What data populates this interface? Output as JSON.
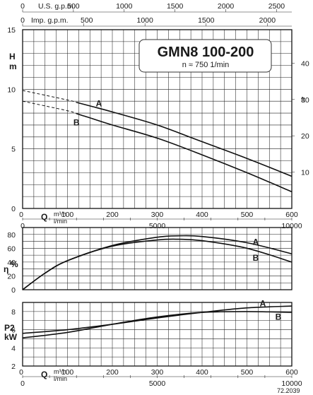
{
  "title": "GMN8 100-200",
  "subtitle": "n ≈ 750 1/min",
  "code": "72.2039",
  "top_axes": {
    "us_gpm": {
      "label": "U.S. g.p.m.",
      "ticks": [
        0,
        500,
        1000,
        1500,
        2000,
        2500
      ]
    },
    "imp_gpm": {
      "label": "Imp. g.p.m.",
      "label_tick": "500",
      "ticks": [
        0,
        500,
        1000,
        1500,
        2000
      ]
    }
  },
  "q_axis": {
    "label": "Q",
    "unit_m3h": "m³/h",
    "unit_lmin": "l/min",
    "m3h_ticks": [
      0,
      100,
      200,
      300,
      400,
      500,
      600
    ],
    "lmin_ticks": [
      0,
      5000,
      10000
    ],
    "xlim": [
      0,
      600
    ]
  },
  "chart_data": [
    {
      "type": "line",
      "id": "head",
      "ylabel": "H",
      "yunit": "m",
      "right_unit": "ft",
      "ylim": [
        0,
        15
      ],
      "yticks": [
        0,
        5,
        10,
        15
      ],
      "right_ticks": [
        10,
        20,
        30,
        40
      ],
      "xlim": [
        0,
        600
      ],
      "grid": true,
      "series": [
        {
          "name": "A",
          "x": [
            0,
            100,
            150,
            200,
            300,
            400,
            500,
            600
          ],
          "y": [
            9.9,
            9.1,
            8.6,
            8.1,
            7.0,
            5.6,
            4.2,
            2.7
          ],
          "dashed_until": 120
        },
        {
          "name": "B",
          "x": [
            0,
            100,
            150,
            200,
            300,
            400,
            500,
            600
          ],
          "y": [
            9.0,
            8.2,
            7.6,
            7.0,
            5.9,
            4.5,
            3.0,
            1.4
          ],
          "dashed_until": 120
        }
      ]
    },
    {
      "type": "line",
      "id": "efficiency",
      "ylabel": "η",
      "yunit": "%",
      "ylim": [
        0,
        90
      ],
      "yticks": [
        0,
        20,
        40,
        60,
        80
      ],
      "xlim": [
        0,
        600
      ],
      "grid": true,
      "series": [
        {
          "name": "A",
          "x": [
            0,
            50,
            100,
            200,
            300,
            350,
            400,
            500,
            600
          ],
          "y": [
            0,
            24,
            42,
            64,
            76,
            78,
            77,
            68,
            52
          ]
        },
        {
          "name": "B",
          "x": [
            0,
            50,
            100,
            200,
            300,
            350,
            400,
            500,
            600
          ],
          "y": [
            0,
            24,
            42,
            63,
            72,
            73,
            71,
            60,
            40
          ]
        }
      ]
    },
    {
      "type": "line",
      "id": "power",
      "ylabel": "P2",
      "yunit": "kW",
      "ylim": [
        2,
        9
      ],
      "yticks": [
        2,
        4,
        6,
        8
      ],
      "xlim": [
        0,
        600
      ],
      "grid": true,
      "series": [
        {
          "name": "A",
          "x": [
            0,
            100,
            200,
            300,
            400,
            500,
            600
          ],
          "y": [
            5.6,
            6.0,
            6.6,
            7.3,
            7.9,
            8.4,
            8.6
          ]
        },
        {
          "name": "B",
          "x": [
            0,
            100,
            200,
            300,
            400,
            500,
            600
          ],
          "y": [
            5.1,
            5.7,
            6.6,
            7.4,
            7.9,
            8.0,
            7.9
          ]
        }
      ]
    }
  ]
}
